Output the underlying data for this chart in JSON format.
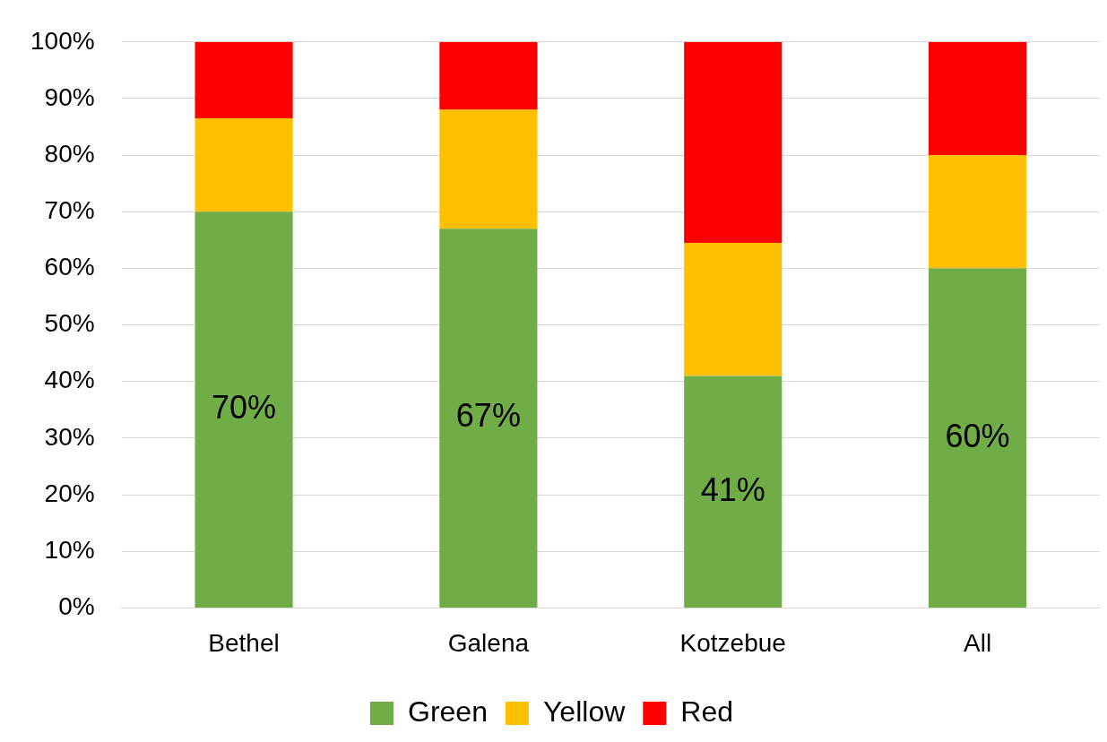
{
  "chart_data": {
    "type": "bar",
    "stacked": true,
    "categories": [
      "Bethel",
      "Galena",
      "Kotzebue",
      "All"
    ],
    "series": [
      {
        "name": "Green",
        "color": "#70ad47",
        "values": [
          70,
          67,
          41,
          60
        ],
        "value_labels": [
          "70%",
          "67%",
          "41%",
          "60%"
        ]
      },
      {
        "name": "Yellow",
        "color": "#ffc000",
        "values": [
          16.5,
          21,
          23.5,
          20
        ]
      },
      {
        "name": "Red",
        "color": "#ff0000",
        "values": [
          13.5,
          12,
          35.5,
          20
        ]
      }
    ],
    "ylim": [
      0,
      100
    ],
    "yticks": [
      {
        "value": 0,
        "label": "0%"
      },
      {
        "value": 10,
        "label": "10%"
      },
      {
        "value": 20,
        "label": "20%"
      },
      {
        "value": 30,
        "label": "30%"
      },
      {
        "value": 40,
        "label": "40%"
      },
      {
        "value": 50,
        "label": "50%"
      },
      {
        "value": 60,
        "label": "60%"
      },
      {
        "value": 70,
        "label": "70%"
      },
      {
        "value": 80,
        "label": "80%"
      },
      {
        "value": 90,
        "label": "90%"
      },
      {
        "value": 100,
        "label": "100%"
      }
    ],
    "grid": "y",
    "legend": "bottom"
  }
}
